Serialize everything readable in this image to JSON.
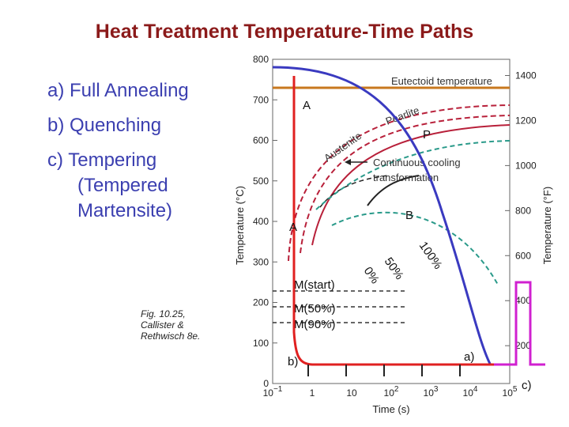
{
  "title": "Heat Treatment Temperature-Time Paths",
  "list": {
    "a": "a) Full Annealing",
    "b": "b) Quenching",
    "c_line1": "c) Tempering",
    "c_line2": "(Tempered",
    "c_line3": "Martensite)"
  },
  "caption": {
    "line1": "Fig. 10.25,",
    "line2": "Callister &",
    "line3": "Rethwisch 8e."
  },
  "chart_data": {
    "type": "line",
    "title": "",
    "xlabel": "Time (s)",
    "ylabel_left": "Temperature (°C)",
    "ylabel_right": "Temperature (°F)",
    "left_ticks": [
      "800",
      "700",
      "600",
      "500",
      "400",
      "300",
      "200",
      "100",
      "0"
    ],
    "right_ticks": [
      "1400",
      "1200",
      "1000",
      "800",
      "600",
      "400",
      "200"
    ],
    "x_ticks": [
      {
        "base": "10",
        "sup": "−1"
      },
      {
        "base": "1",
        "sup": ""
      },
      {
        "base": "10",
        "sup": ""
      },
      {
        "base": "10",
        "sup": "2"
      },
      {
        "base": "10",
        "sup": "3"
      },
      {
        "base": "10",
        "sup": "4"
      },
      {
        "base": "10",
        "sup": "5"
      }
    ],
    "ylim_c": [
      0,
      800
    ],
    "annotations": {
      "eutectoid": "Eutectoid temperature",
      "pearlite": "Pearlite",
      "austenite": "Austenite",
      "cct_line1": "Continuous cooling",
      "cct_line2": "transformation",
      "pct_100": "100%",
      "pct_50": "50%",
      "pct_0": "0%",
      "ms": "M(start)",
      "m50": "M(50%)",
      "m90": "M(90%)"
    },
    "labels": {
      "A_top": "A",
      "P": "P",
      "B": "B",
      "A_low": "A",
      "path_a": "a)",
      "path_b": "b)",
      "path_c": "c)"
    },
    "colors": {
      "eutectoid": "#C8781E",
      "annealing": "#3a3ac0",
      "quench": "#e02020",
      "temper": "#d020d0",
      "crimson": "#b8203a",
      "teal": "#2a9a8a",
      "black": "#222222"
    }
  }
}
